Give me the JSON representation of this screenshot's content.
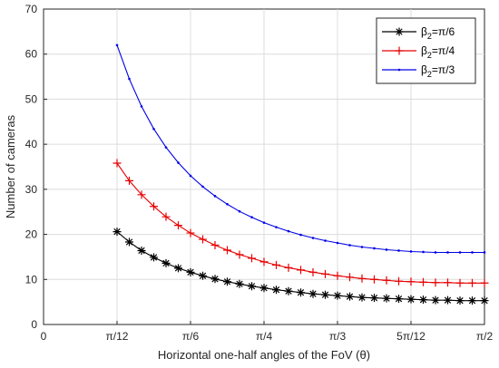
{
  "chart_data": {
    "type": "line",
    "xlabel": "Horizontal one-half angles of the FoV (θ)",
    "ylabel": "Number of cameras",
    "xlim": [
      0,
      90
    ],
    "ylim": [
      0,
      70
    ],
    "x_unit": "degrees",
    "x_ticks": [
      {
        "value": 0,
        "label": "0"
      },
      {
        "value": 15,
        "label": "π/12"
      },
      {
        "value": 30,
        "label": "π/6"
      },
      {
        "value": 45,
        "label": "π/4"
      },
      {
        "value": 60,
        "label": "π/3"
      },
      {
        "value": 75,
        "label": "5π/12"
      },
      {
        "value": 90,
        "label": "π/2"
      }
    ],
    "y_ticks": [
      0,
      10,
      20,
      30,
      40,
      50,
      60,
      70
    ],
    "grid": true,
    "legend_position": "top-right",
    "x": [
      15,
      17.5,
      20,
      22.5,
      25,
      27.5,
      30,
      32.5,
      35,
      37.5,
      40,
      42.5,
      45,
      47.5,
      50,
      52.5,
      55,
      57.5,
      60,
      62.5,
      65,
      67.5,
      70,
      72.5,
      75,
      77.5,
      80,
      82.5,
      85,
      87.5,
      90
    ],
    "series": [
      {
        "name": "β2=π/6",
        "legend_label": {
          "base": "β",
          "sub": "2",
          "rest": "=π/6"
        },
        "color": "#000000",
        "marker": "asterisk",
        "values": [
          20.6,
          18.3,
          16.4,
          14.9,
          13.6,
          12.5,
          11.6,
          10.8,
          10.1,
          9.5,
          9.0,
          8.5,
          8.1,
          7.7,
          7.4,
          7.1,
          6.8,
          6.6,
          6.4,
          6.2,
          6.0,
          5.9,
          5.8,
          5.7,
          5.6,
          5.5,
          5.4,
          5.4,
          5.3,
          5.3,
          5.3
        ]
      },
      {
        "name": "β2=π/4",
        "legend_label": {
          "base": "β",
          "sub": "2",
          "rest": "=π/4"
        },
        "color": "#e60000",
        "marker": "plus",
        "values": [
          35.8,
          31.9,
          28.8,
          26.2,
          23.9,
          22.0,
          20.3,
          18.9,
          17.6,
          16.5,
          15.5,
          14.7,
          13.9,
          13.2,
          12.6,
          12.1,
          11.6,
          11.2,
          10.8,
          10.5,
          10.2,
          10.0,
          9.8,
          9.6,
          9.5,
          9.4,
          9.3,
          9.3,
          9.2,
          9.2,
          9.2
        ]
      },
      {
        "name": "β2=π/3",
        "legend_label": {
          "base": "β",
          "sub": "2",
          "rest": "=π/3"
        },
        "color": "#0000e6",
        "marker": "dot",
        "values": [
          62.0,
          54.5,
          48.4,
          43.4,
          39.3,
          35.9,
          33.0,
          30.6,
          28.5,
          26.7,
          25.1,
          23.8,
          22.6,
          21.6,
          20.7,
          19.9,
          19.2,
          18.6,
          18.1,
          17.6,
          17.2,
          16.9,
          16.6,
          16.4,
          16.2,
          16.1,
          16.0,
          16.0,
          16.0,
          16.0,
          16.0
        ]
      }
    ]
  }
}
